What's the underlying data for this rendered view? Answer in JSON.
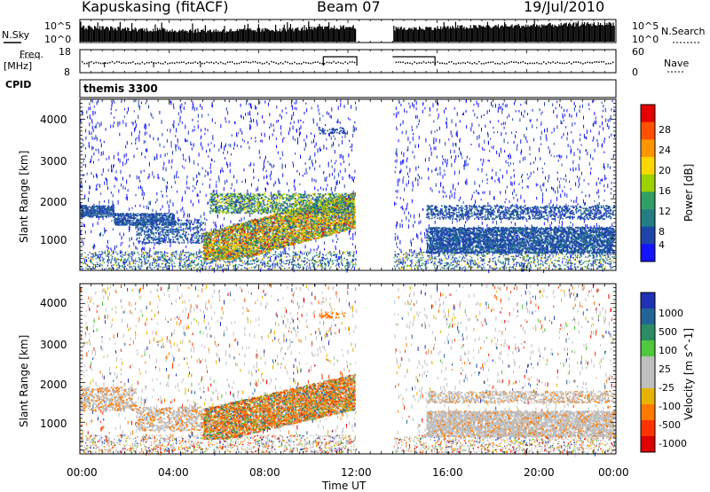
{
  "header": {
    "station": "Kapuskasing (fitACF)",
    "beam": "Beam 07",
    "date": "19/Jul/2010"
  },
  "top_panels": {
    "nsky_label": "N.Sky",
    "nsky_ticks": [
      "10^5",
      "10^0"
    ],
    "nsearch_label": "N.Search",
    "nsearch_ticks": [
      "10^5",
      "10^0"
    ],
    "freq_label_1": "Freq.",
    "freq_label_2": "[MHz]",
    "freq_ticks": [
      "18",
      "8"
    ],
    "nave_label": "Nave",
    "nave_ticks": [
      "60",
      "0"
    ],
    "cpid_label": "CPID",
    "cpid_value": "themis 3300"
  },
  "chart_data": [
    {
      "type": "heatmap",
      "name": "power",
      "ylabel": "Slant Range [km]",
      "ylim": [
        200,
        4500
      ],
      "yticks": [
        1000,
        2000,
        3000,
        4000
      ],
      "x_hours": [
        0,
        24
      ],
      "data_gap_hours": [
        12.4,
        14.0
      ],
      "colorbar_label": "Power [dB]",
      "colorbar_ticks": [
        "28",
        "24",
        "20",
        "16",
        "12",
        "8",
        "4"
      ],
      "colorbar_colors": [
        "#e60000",
        "#ff5000",
        "#ff9600",
        "#ffd700",
        "#9bd200",
        "#32a064",
        "#237d82",
        "#1e46aa",
        "#1414ff"
      ]
    },
    {
      "type": "heatmap",
      "name": "velocity",
      "ylabel": "Slant Range [km]",
      "ylim": [
        200,
        4500
      ],
      "yticks": [
        1000,
        2000,
        3000,
        4000
      ],
      "x_hours": [
        0,
        24
      ],
      "data_gap_hours": [
        12.4,
        14.0
      ],
      "colorbar_label": "Velocity [m s^-1]",
      "colorbar_ticks": [
        "1000",
        "500",
        "100",
        "25",
        "-25",
        "-100",
        "-500",
        "-1000"
      ],
      "colorbar_colors": [
        "#1e32b4",
        "#236496",
        "#2d8c64",
        "#50c83c",
        "#bebebe",
        "#bebebe",
        "#e6b400",
        "#ff7800",
        "#ff3200",
        "#dc0000"
      ]
    }
  ],
  "xaxis": {
    "label": "Time UT",
    "ticks": [
      "00:00",
      "04:00",
      "08:00",
      "12:00",
      "16:00",
      "20:00",
      "00:00"
    ]
  }
}
